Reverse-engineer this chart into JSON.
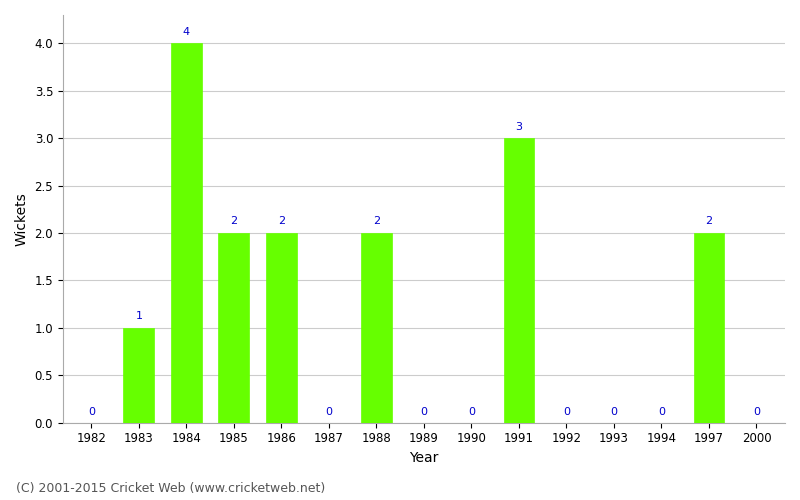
{
  "years": [
    "1982",
    "1983",
    "1984",
    "1985",
    "1986",
    "1987",
    "1988",
    "1989",
    "1990",
    "1991",
    "1992",
    "1993",
    "1994",
    "1997",
    "2000"
  ],
  "wickets": [
    0,
    1,
    4,
    2,
    2,
    0,
    2,
    0,
    0,
    3,
    0,
    0,
    0,
    2,
    0
  ],
  "bar_color": "#66ff00",
  "xlabel": "Year",
  "ylabel": "Wickets",
  "ylim": [
    0,
    4.3
  ],
  "yticks": [
    0.0,
    0.5,
    1.0,
    1.5,
    2.0,
    2.5,
    3.0,
    3.5,
    4.0
  ],
  "label_color": "#0000cc",
  "label_fontsize": 8,
  "background_color": "#ffffff",
  "footer": "(C) 2001-2015 Cricket Web (www.cricketweb.net)",
  "footer_color": "#555555",
  "footer_fontsize": 9,
  "grid_color": "#cccccc",
  "bar_width": 0.65
}
